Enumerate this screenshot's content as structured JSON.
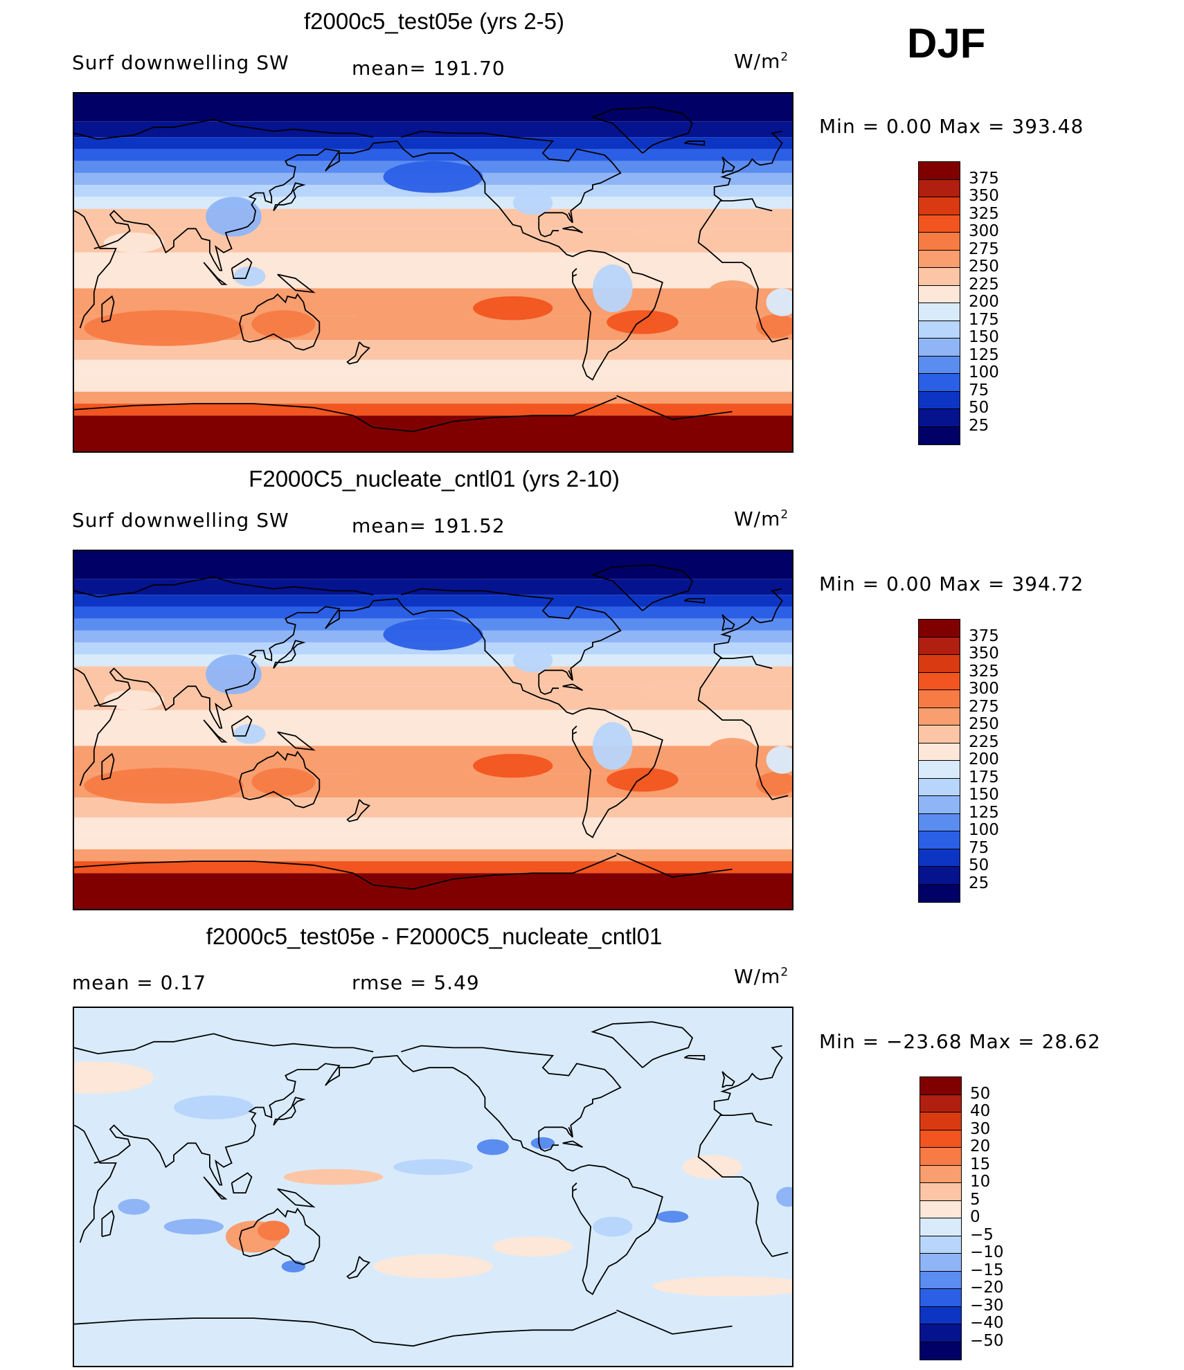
{
  "season": "DJF",
  "panels": [
    {
      "title": "f2000c5_test05e (yrs 2-5)",
      "left_label": "Surf  downwelling  SW",
      "mid_label": "mean=  191.70",
      "units": "W/m",
      "units_sup": "2",
      "stats": "Min  =      0.00  Max  =  393.48",
      "colorbar": {
        "levels": [
          "375",
          "350",
          "325",
          "300",
          "275",
          "250",
          "225",
          "200",
          "175",
          "150",
          "125",
          "100",
          "75",
          "50",
          "25"
        ],
        "colors": [
          "#800000",
          "#b01f0f",
          "#d93a12",
          "#f2551f",
          "#f77b45",
          "#f99e6e",
          "#fcc6a6",
          "#fde7d8",
          "#d9ebfb",
          "#b8d5fb",
          "#8fb5f7",
          "#5b8cf0",
          "#2b5fe6",
          "#0d35c4",
          "#05138f",
          "#000066"
        ]
      },
      "map_style": "mean"
    },
    {
      "title": "F2000C5_nucleate_cntl01 (yrs 2-10)",
      "left_label": "Surf  downwelling  SW",
      "mid_label": "mean=  191.52",
      "units": "W/m",
      "units_sup": "2",
      "stats": "Min  =      0.00  Max  =  394.72",
      "colorbar": {
        "levels": [
          "375",
          "350",
          "325",
          "300",
          "275",
          "250",
          "225",
          "200",
          "175",
          "150",
          "125",
          "100",
          "75",
          "50",
          "25"
        ],
        "colors": [
          "#800000",
          "#b01f0f",
          "#d93a12",
          "#f2551f",
          "#f77b45",
          "#f99e6e",
          "#fcc6a6",
          "#fde7d8",
          "#d9ebfb",
          "#b8d5fb",
          "#8fb5f7",
          "#5b8cf0",
          "#2b5fe6",
          "#0d35c4",
          "#05138f",
          "#000066"
        ]
      },
      "map_style": "mean"
    },
    {
      "title": "f2000c5_test05e - F2000C5_nucleate_cntl01",
      "left_label": "mean  =     0.17",
      "mid_label": "rmse  =     5.49",
      "units": "W/m",
      "units_sup": "2",
      "stats": "Min  = −23.68  Max  =    28.62",
      "colorbar": {
        "levels": [
          "50",
          "40",
          "30",
          "20",
          "15",
          "10",
          "5",
          "0",
          "−5",
          "−10",
          "−15",
          "−20",
          "−30",
          "−40",
          "−50"
        ],
        "colors": [
          "#800000",
          "#b01f0f",
          "#d93a12",
          "#f2551f",
          "#f77b45",
          "#f99e6e",
          "#fcc6a6",
          "#fde7d8",
          "#d9ebfb",
          "#b8d5fb",
          "#8fb5f7",
          "#5b8cf0",
          "#2b5fe6",
          "#0d35c4",
          "#05138f",
          "#000066"
        ]
      },
      "map_style": "diff"
    }
  ]
}
